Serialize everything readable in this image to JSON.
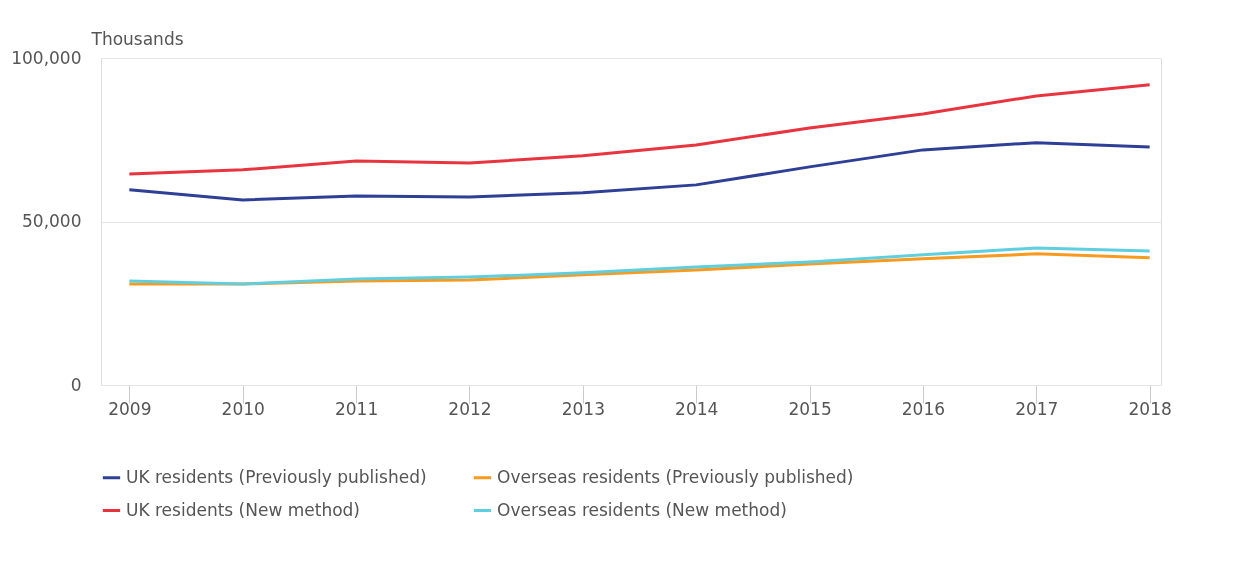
{
  "chart_data": {
    "type": "line",
    "ylabel": "Thousands",
    "categories": [
      "2009",
      "2010",
      "2011",
      "2012",
      "2013",
      "2014",
      "2015",
      "2016",
      "2017",
      "2018"
    ],
    "series": [
      {
        "name": "UK residents (Previously published)",
        "color": "#2e3f96",
        "values": [
          59700,
          56600,
          57800,
          57500,
          58800,
          61200,
          66700,
          71900,
          74100,
          72800
        ]
      },
      {
        "name": "Overseas residents (Previously published)",
        "color": "#f79a1e",
        "values": [
          30900,
          30900,
          31800,
          32100,
          33700,
          35200,
          37000,
          38600,
          40100,
          38900
        ]
      },
      {
        "name": "UK residents (New method)",
        "color": "#e8343f",
        "values": [
          64500,
          65800,
          68500,
          67900,
          70100,
          73400,
          78600,
          82900,
          88400,
          91800
        ]
      },
      {
        "name": "Overseas residents (New method)",
        "color": "#5fcfe0",
        "values": [
          31800,
          30900,
          32400,
          33000,
          34300,
          36100,
          37600,
          39800,
          41900,
          41000
        ]
      }
    ],
    "ylim": [
      0,
      100000
    ],
    "yticks": [
      0,
      {
        "value": 50000,
        "label": "50,000"
      },
      {
        "value": 100000,
        "label": "100,000"
      }
    ],
    "grid": "y",
    "legend": "bottom",
    "marker": "none",
    "line_style": "solid"
  }
}
